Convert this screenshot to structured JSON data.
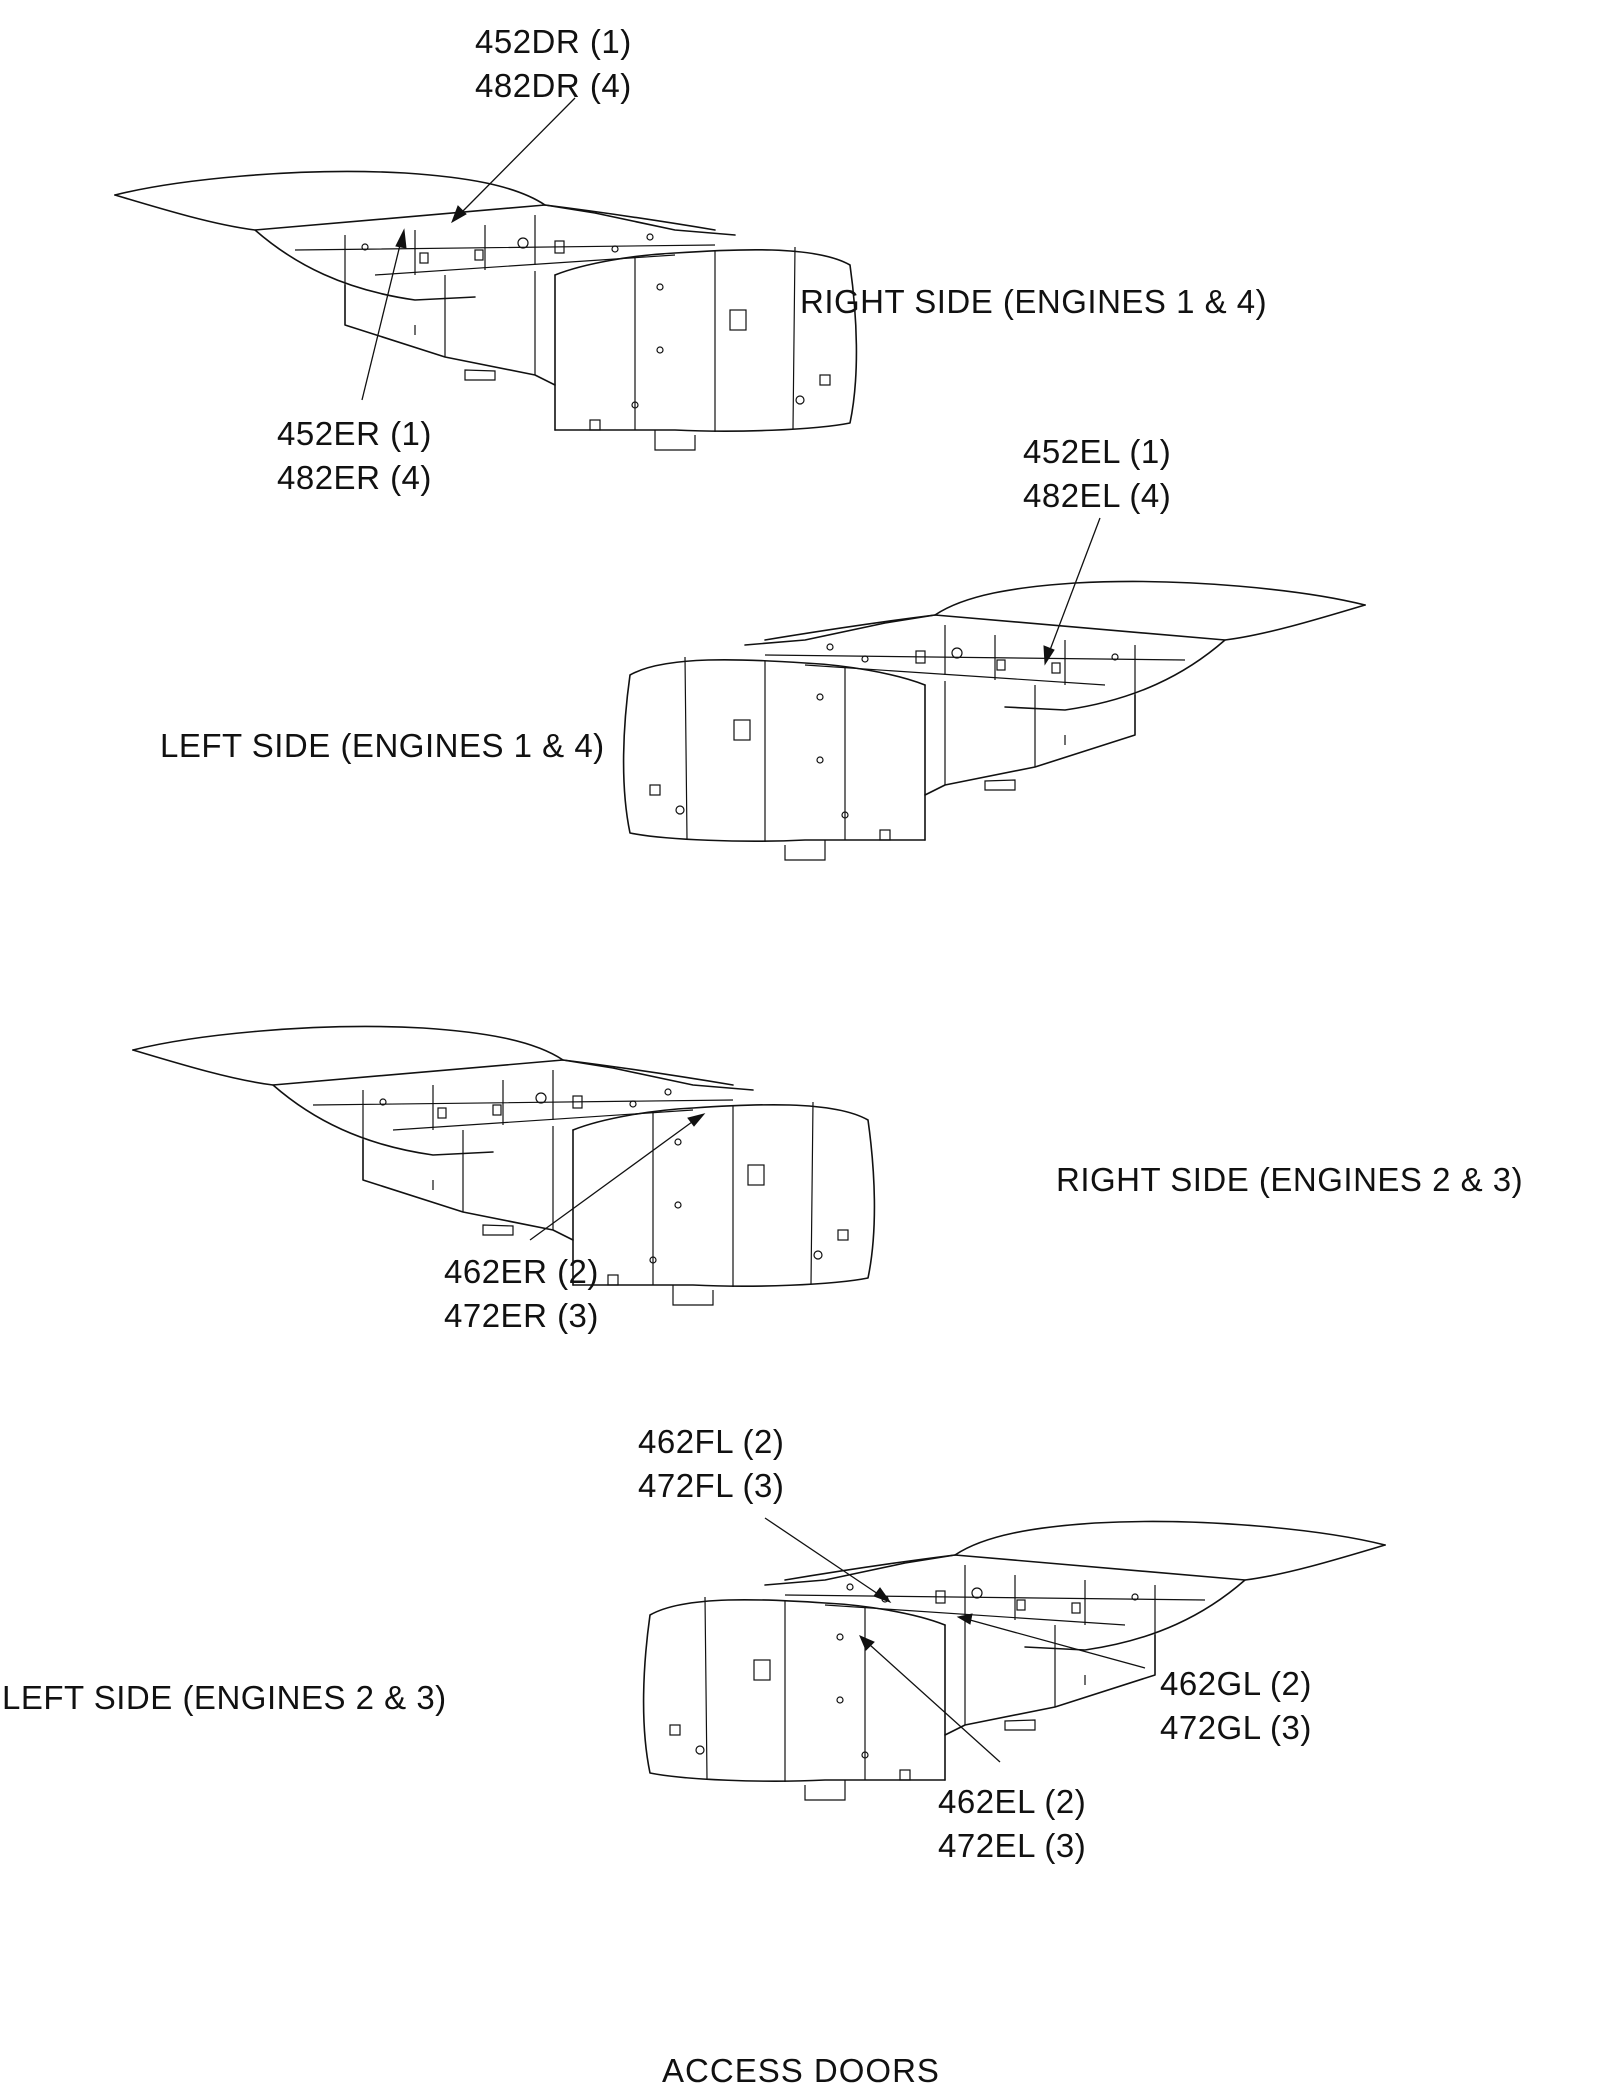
{
  "title": "ACCESS DOORS",
  "views": [
    {
      "id": "right-engines-1-4",
      "side_label": "RIGHT SIDE (ENGINES 1 & 4)",
      "callouts": [
        {
          "id": "callout-452dr",
          "lines": [
            "452DR (1)",
            "482DR (4)"
          ]
        },
        {
          "id": "callout-452er",
          "lines": [
            "452ER (1)",
            "482ER (4)"
          ]
        }
      ]
    },
    {
      "id": "left-engines-1-4",
      "side_label": "LEFT SIDE (ENGINES 1 & 4)",
      "callouts": [
        {
          "id": "callout-452el",
          "lines": [
            "452EL (1)",
            "482EL (4)"
          ]
        }
      ]
    },
    {
      "id": "right-engines-2-3",
      "side_label": "RIGHT SIDE (ENGINES 2 & 3)",
      "callouts": [
        {
          "id": "callout-462er",
          "lines": [
            "462ER (2)",
            "472ER (3)"
          ]
        }
      ]
    },
    {
      "id": "left-engines-2-3",
      "side_label": "LEFT SIDE (ENGINES 2 & 3)",
      "callouts": [
        {
          "id": "callout-462fl",
          "lines": [
            "462FL (2)",
            "472FL (3)"
          ]
        },
        {
          "id": "callout-462gl",
          "lines": [
            "462GL (2)",
            "472GL (3)"
          ]
        },
        {
          "id": "callout-462el",
          "lines": [
            "462EL (2)",
            "472EL (3)"
          ]
        }
      ]
    }
  ]
}
